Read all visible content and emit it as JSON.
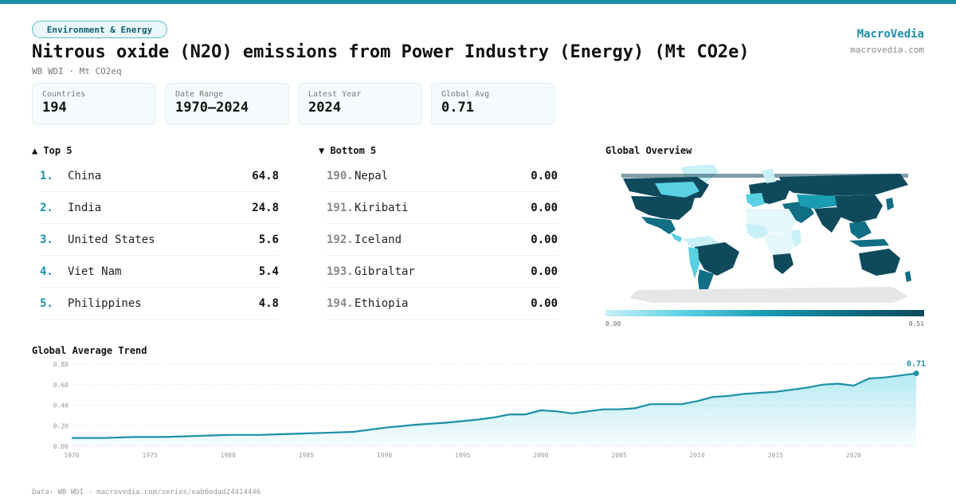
{
  "header": {
    "category": "Environment & Energy",
    "title": "Nitrous oxide (N2O) emissions from Power Industry (Energy) (Mt CO2e)",
    "subtitle": "WB WDI · Mt CO2eq",
    "brand": "MacroVedia",
    "brand_url": "macrovedia.com"
  },
  "stats": [
    {
      "label": "Countries",
      "value": "194"
    },
    {
      "label": "Date Range",
      "value": "1970–2024"
    },
    {
      "label": "Latest Year",
      "value": "2024"
    },
    {
      "label": "Global Avg",
      "value": "0.71"
    }
  ],
  "top5": {
    "heading": "▲ Top 5",
    "items": [
      {
        "rank": "1.",
        "name": "China",
        "value": "64.8"
      },
      {
        "rank": "2.",
        "name": "India",
        "value": "24.8"
      },
      {
        "rank": "3.",
        "name": "United States",
        "value": "5.6"
      },
      {
        "rank": "4.",
        "name": "Viet Nam",
        "value": "5.4"
      },
      {
        "rank": "5.",
        "name": "Philippines",
        "value": "4.8"
      }
    ]
  },
  "bottom5": {
    "heading": "▼ Bottom 5",
    "items": [
      {
        "rank": "190.",
        "name": "Nepal",
        "value": "0.00"
      },
      {
        "rank": "191.",
        "name": "Kiribati",
        "value": "0.00"
      },
      {
        "rank": "192.",
        "name": "Iceland",
        "value": "0.00"
      },
      {
        "rank": "193.",
        "name": "Gibraltar",
        "value": "0.00"
      },
      {
        "rank": "194.",
        "name": "Ethiopia",
        "value": "0.00"
      }
    ]
  },
  "map": {
    "title": "Global Overview",
    "scale_min": "0.00",
    "scale_max": "0.51",
    "colors": {
      "low": "#c8f0f7",
      "mid": "#1a9cb3",
      "high": "#0e4a5c",
      "nodata": "#e4e6e8"
    }
  },
  "chart_data": {
    "type": "area",
    "title": "Global Average Trend",
    "x": [
      1970,
      1972,
      1974,
      1976,
      1978,
      1980,
      1982,
      1984,
      1986,
      1988,
      1990,
      1992,
      1994,
      1996,
      1997,
      1998,
      1999,
      2000,
      2001,
      2002,
      2003,
      2004,
      2005,
      2006,
      2007,
      2008,
      2009,
      2010,
      2011,
      2012,
      2013,
      2014,
      2015,
      2016,
      2017,
      2018,
      2019,
      2020,
      2021,
      2022,
      2023,
      2024
    ],
    "y": [
      0.08,
      0.08,
      0.09,
      0.09,
      0.1,
      0.11,
      0.11,
      0.12,
      0.13,
      0.14,
      0.18,
      0.21,
      0.23,
      0.26,
      0.28,
      0.31,
      0.31,
      0.35,
      0.34,
      0.32,
      0.34,
      0.36,
      0.36,
      0.37,
      0.41,
      0.41,
      0.41,
      0.44,
      0.48,
      0.49,
      0.51,
      0.52,
      0.53,
      0.55,
      0.57,
      0.6,
      0.61,
      0.59,
      0.66,
      0.67,
      0.69,
      0.71
    ],
    "x_ticks": [
      1970,
      1975,
      1980,
      1985,
      1990,
      1995,
      2000,
      2005,
      2010,
      2015,
      2020
    ],
    "y_ticks": [
      "0.00",
      "0.20",
      "0.40",
      "0.60",
      "0.80"
    ],
    "xlim": [
      1970,
      2024
    ],
    "ylim": [
      0,
      0.8
    ],
    "last_label": "0.71",
    "grid": true,
    "line_color": "#1b8fa6"
  },
  "footer": "Data: WB WDI · macrovedia.com/series/eab6edad24414446"
}
